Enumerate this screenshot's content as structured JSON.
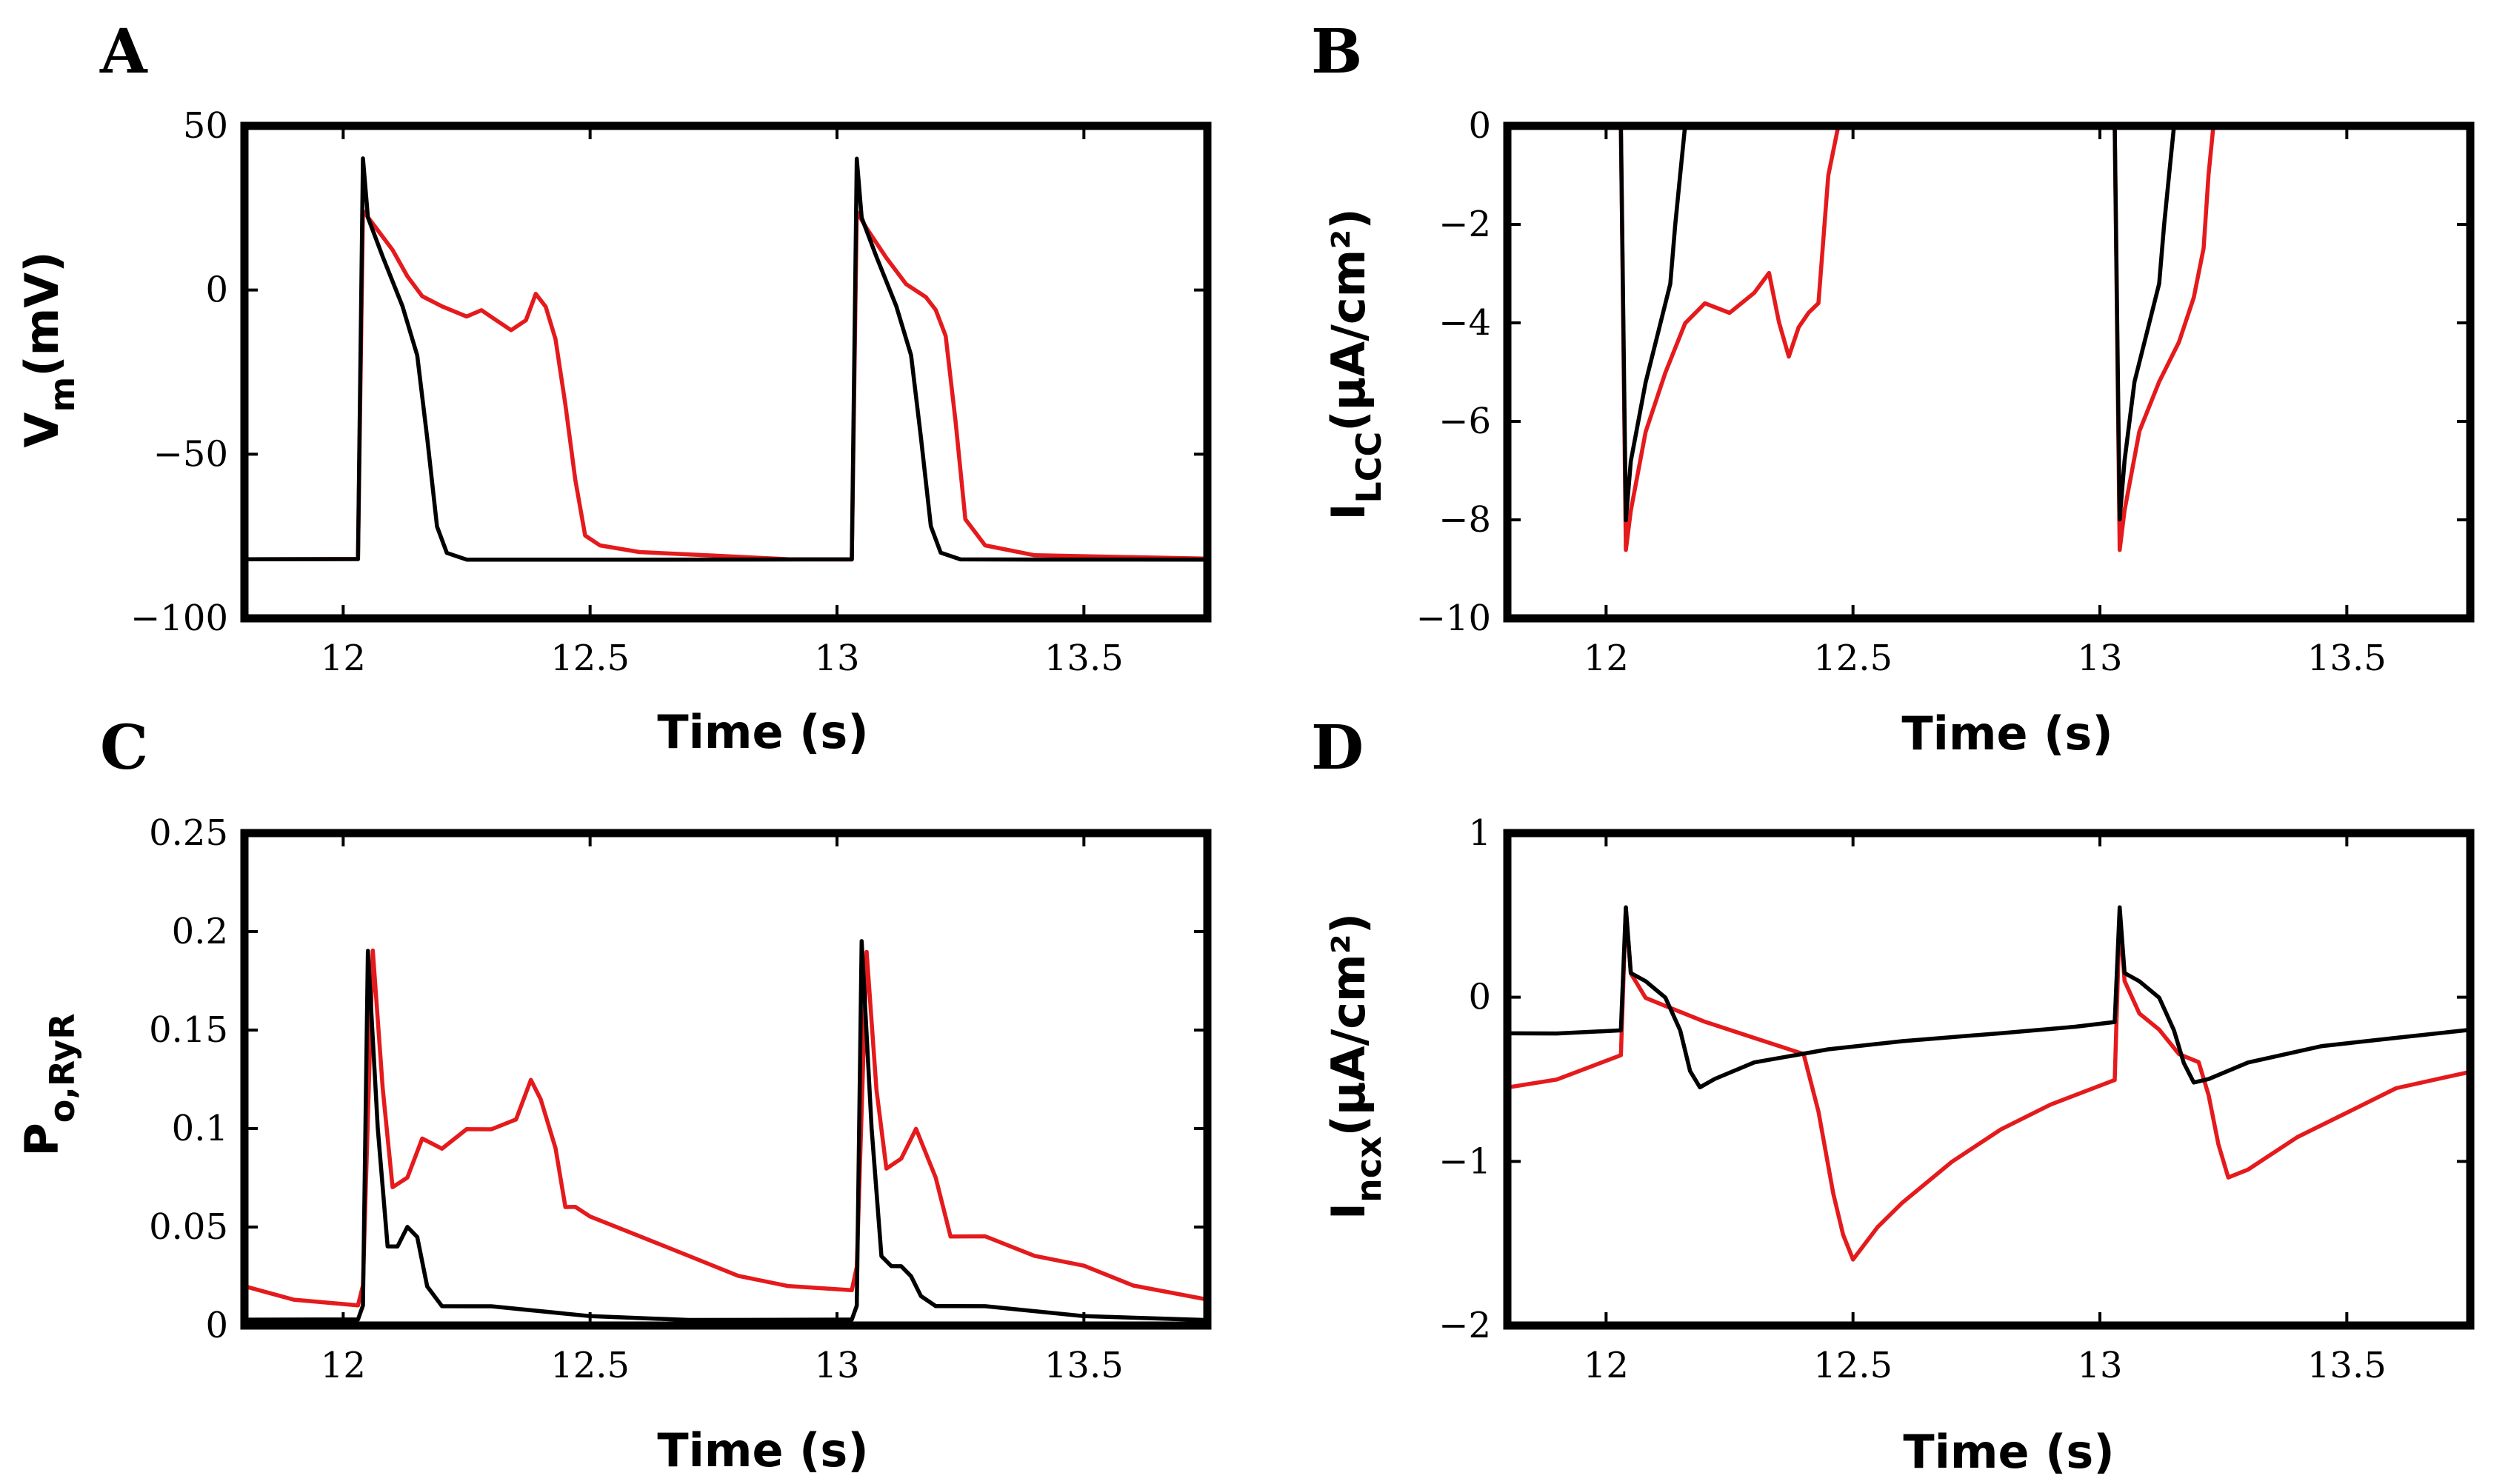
{
  "colors": {
    "series_1": "#e41a1c",
    "series_2": "#000000"
  },
  "chart_data": [
    {
      "type": "line",
      "panel_label": "A",
      "ylabel": "V",
      "ylabel_sub": "m",
      "ylabel_tail": "(mV)",
      "xlabel": "Time (s)",
      "xlim": [
        11.8,
        13.75
      ],
      "ylim": [
        -100,
        50
      ],
      "xticks": [
        "12",
        "12.5",
        "13",
        "13.5"
      ],
      "yticks": [
        "−100",
        "−50",
        "0",
        "50"
      ],
      "series": [
        {
          "color": "#e41a1c",
          "x": [
            11.8,
            12.03,
            12.04,
            12.06,
            12.1,
            12.13,
            12.16,
            12.2,
            12.25,
            12.28,
            12.31,
            12.34,
            12.37,
            12.39,
            12.41,
            12.43,
            12.45,
            12.47,
            12.49,
            12.52,
            12.6,
            12.75,
            12.9,
            13.03,
            13.04,
            13.06,
            13.1,
            13.14,
            13.18,
            13.2,
            13.22,
            13.24,
            13.26,
            13.3,
            13.4,
            13.75
          ],
          "y": [
            -82,
            -82,
            24,
            20,
            12,
            4,
            -2,
            -5,
            -8,
            -6,
            -9,
            -12,
            -9,
            -1,
            -5,
            -15,
            -35,
            -58,
            -75,
            -78,
            -80,
            -81,
            -82,
            -82,
            24,
            19,
            10,
            2,
            -2,
            -6,
            -14,
            -40,
            -70,
            -78,
            -81,
            -82
          ]
        },
        {
          "color": "#000000",
          "x": [
            11.8,
            12.03,
            12.04,
            12.05,
            12.08,
            12.12,
            12.15,
            12.17,
            12.19,
            12.21,
            12.25,
            12.4,
            12.6,
            12.8,
            13.03,
            13.04,
            13.05,
            13.08,
            13.12,
            13.15,
            13.17,
            13.19,
            13.21,
            13.25,
            13.4,
            13.75
          ],
          "y": [
            -82,
            -82,
            40,
            22,
            10,
            -5,
            -20,
            -45,
            -72,
            -80,
            -82,
            -82,
            -82,
            -82,
            -82,
            40,
            22,
            10,
            -5,
            -20,
            -45,
            -72,
            -80,
            -82,
            -82,
            -82
          ]
        }
      ]
    },
    {
      "type": "line",
      "panel_label": "B",
      "ylabel": "I",
      "ylabel_sub": "LCC",
      "ylabel_tail": "(μA/cm²)",
      "xlabel": "Time (s)",
      "xlim": [
        11.8,
        13.75
      ],
      "ylim": [
        -10,
        0
      ],
      "xticks": [
        "12",
        "12.5",
        "13",
        "13.5"
      ],
      "yticks": [
        "−10",
        "−8",
        "−6",
        "−4",
        "−2",
        "0"
      ],
      "series": [
        {
          "color": "#e41a1c",
          "x": [
            11.8,
            12.03,
            12.04,
            12.05,
            12.08,
            12.12,
            12.16,
            12.2,
            12.25,
            12.3,
            12.33,
            12.35,
            12.37,
            12.39,
            12.41,
            12.43,
            12.45,
            12.47,
            12.6,
            13.03,
            13.04,
            13.05,
            13.08,
            13.12,
            13.16,
            13.19,
            13.21,
            13.22,
            13.23,
            13.4,
            13.75
          ],
          "y": [
            0,
            0,
            -8.6,
            -7.8,
            -6.2,
            -5,
            -4,
            -3.6,
            -3.8,
            -3.4,
            -3,
            -4,
            -4.7,
            -4.1,
            -3.8,
            -3.6,
            -1,
            0,
            0,
            0,
            -8.6,
            -7.8,
            -6.2,
            -5.2,
            -4.4,
            -3.5,
            -2.5,
            -1,
            0,
            0,
            0
          ]
        },
        {
          "color": "#000000",
          "x": [
            11.8,
            12.03,
            12.04,
            12.05,
            12.08,
            12.11,
            12.13,
            12.14,
            12.15,
            12.16,
            12.3,
            13.03,
            13.04,
            13.05,
            13.07,
            13.1,
            13.12,
            13.13,
            13.14,
            13.15,
            13.16,
            13.3,
            13.75
          ],
          "y": [
            0,
            0,
            -8,
            -6.8,
            -5.2,
            -4,
            -3.2,
            -2,
            -1,
            0,
            0,
            0,
            -8,
            -6.8,
            -5.2,
            -4,
            -3.2,
            -2,
            -1,
            0,
            0,
            0,
            0
          ]
        }
      ]
    },
    {
      "type": "line",
      "panel_label": "C",
      "ylabel": "P",
      "ylabel_sub": "o,RyR",
      "ylabel_tail": "",
      "xlabel": "Time (s)",
      "xlim": [
        11.8,
        13.75
      ],
      "ylim": [
        0,
        0.25
      ],
      "xticks": [
        "12",
        "12.5",
        "13",
        "13.5"
      ],
      "yticks": [
        "0",
        "0.05",
        "0.1",
        "0.15",
        "0.2",
        "0.25"
      ],
      "series": [
        {
          "color": "#e41a1c",
          "x": [
            11.8,
            11.9,
            12.03,
            12.04,
            12.06,
            12.08,
            12.1,
            12.13,
            12.16,
            12.2,
            12.25,
            12.3,
            12.35,
            12.38,
            12.4,
            12.43,
            12.45,
            12.47,
            12.5,
            12.6,
            12.7,
            12.8,
            12.9,
            13.03,
            13.04,
            13.06,
            13.08,
            13.1,
            13.13,
            13.16,
            13.2,
            13.23,
            13.3,
            13.4,
            13.5,
            13.6,
            13.75
          ],
          "y": [
            0.02,
            0.013,
            0.01,
            0.02,
            0.19,
            0.12,
            0.07,
            0.075,
            0.095,
            0.09,
            0.1,
            0.1,
            0.105,
            0.125,
            0.115,
            0.09,
            0.06,
            0.06,
            0.055,
            0.045,
            0.035,
            0.025,
            0.02,
            0.018,
            0.03,
            0.19,
            0.12,
            0.08,
            0.085,
            0.1,
            0.075,
            0.045,
            0.045,
            0.035,
            0.03,
            0.02,
            0.013
          ]
        },
        {
          "color": "#000000",
          "x": [
            11.8,
            12.03,
            12.04,
            12.05,
            12.07,
            12.09,
            12.11,
            12.13,
            12.15,
            12.17,
            12.2,
            12.3,
            12.5,
            12.7,
            12.9,
            13.03,
            13.04,
            13.05,
            13.07,
            13.09,
            13.11,
            13.13,
            13.15,
            13.17,
            13.2,
            13.3,
            13.5,
            13.75
          ],
          "y": [
            0.003,
            0.003,
            0.01,
            0.19,
            0.1,
            0.04,
            0.04,
            0.05,
            0.045,
            0.02,
            0.01,
            0.01,
            0.005,
            0.003,
            0.003,
            0.003,
            0.01,
            0.195,
            0.1,
            0.035,
            0.03,
            0.03,
            0.025,
            0.015,
            0.01,
            0.01,
            0.005,
            0.003
          ]
        }
      ]
    },
    {
      "type": "line",
      "panel_label": "D",
      "ylabel": "I",
      "ylabel_sub": "ncx",
      "ylabel_tail": "(μA/cm²)",
      "xlabel": "Time (s)",
      "xlim": [
        11.8,
        13.75
      ],
      "ylim": [
        -2,
        1
      ],
      "xticks": [
        "12",
        "12.5",
        "13",
        "13.5"
      ],
      "yticks": [
        "−2",
        "−1",
        "0",
        "1"
      ],
      "series": [
        {
          "color": "#e41a1c",
          "x": [
            11.8,
            11.9,
            12.03,
            12.04,
            12.05,
            12.08,
            12.12,
            12.16,
            12.2,
            12.3,
            12.4,
            12.43,
            12.46,
            12.48,
            12.5,
            12.55,
            12.6,
            12.7,
            12.8,
            12.9,
            13.03,
            13.04,
            13.05,
            13.08,
            13.12,
            13.16,
            13.2,
            13.22,
            13.24,
            13.26,
            13.3,
            13.4,
            13.5,
            13.6,
            13.75
          ],
          "y": [
            -0.55,
            -0.5,
            -0.35,
            0.55,
            0.15,
            0,
            -0.05,
            -0.1,
            -0.15,
            -0.25,
            -0.35,
            -0.7,
            -1.2,
            -1.45,
            -1.6,
            -1.4,
            -1.25,
            -1,
            -0.8,
            -0.65,
            -0.5,
            0.5,
            0.1,
            -0.1,
            -0.2,
            -0.35,
            -0.4,
            -0.6,
            -0.9,
            -1.1,
            -1.05,
            -0.85,
            -0.7,
            -0.55,
            -0.45
          ]
        },
        {
          "color": "#000000",
          "x": [
            11.8,
            11.9,
            12.03,
            12.04,
            12.05,
            12.08,
            12.12,
            12.15,
            12.17,
            12.19,
            12.22,
            12.3,
            12.45,
            12.6,
            12.8,
            12.95,
            13.03,
            13.04,
            13.05,
            13.08,
            13.12,
            13.15,
            13.17,
            13.19,
            13.22,
            13.3,
            13.45,
            13.6,
            13.75
          ],
          "y": [
            -0.22,
            -0.22,
            -0.2,
            0.55,
            0.15,
            0.1,
            0,
            -0.2,
            -0.45,
            -0.55,
            -0.5,
            -0.4,
            -0.32,
            -0.27,
            -0.22,
            -0.18,
            -0.15,
            0.55,
            0.15,
            0.1,
            0,
            -0.2,
            -0.4,
            -0.52,
            -0.5,
            -0.4,
            -0.3,
            -0.25,
            -0.2
          ]
        }
      ]
    }
  ]
}
